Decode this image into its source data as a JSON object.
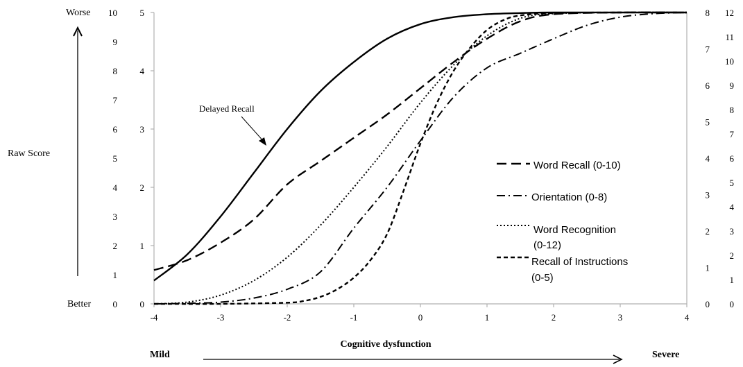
{
  "chart_data": {
    "type": "line",
    "xlabel": "Cognitive dysfunction",
    "xlim": [
      -4,
      4
    ],
    "x_ticks": [
      "-4",
      "-3",
      "-2",
      "-1",
      "0",
      "1",
      "2",
      "3",
      "4"
    ],
    "ylim": [
      0,
      5
    ],
    "y_ticks": [
      "0",
      "1",
      "2",
      "3",
      "4",
      "5"
    ],
    "raw_score_label": "Raw Score",
    "worse_label": "Worse",
    "better_label": "Better",
    "mild_label": "Mild",
    "severe_label": "Severe",
    "annotation": "Delayed Recall",
    "extra_scales": [
      {
        "name": "Delayed Recall scale (0-10)",
        "side": "left",
        "max": 10,
        "ticks": [
          "0",
          "1",
          "2",
          "3",
          "4",
          "5",
          "6",
          "7",
          "8",
          "9",
          "10"
        ]
      },
      {
        "name": "Orientation scale (0-8)",
        "side": "right",
        "max": 8,
        "ticks": [
          "0",
          "1",
          "2",
          "3",
          "4",
          "5",
          "6",
          "7",
          "8"
        ]
      },
      {
        "name": "Word Recognition scale (0-12)",
        "side": "right",
        "max": 12,
        "ticks": [
          "0",
          "1",
          "2",
          "3",
          "4",
          "5",
          "6",
          "7",
          "8",
          "9",
          "10",
          "11",
          "12"
        ]
      }
    ],
    "series": [
      {
        "name": "Delayed Recall",
        "style": "solid",
        "x": [
          -4,
          -3.5,
          -3,
          -2.5,
          -2,
          -1.5,
          -1,
          -0.5,
          0,
          0.5,
          1,
          1.5,
          2,
          3,
          4
        ],
        "y": [
          0.4,
          0.85,
          1.5,
          2.25,
          3.0,
          3.65,
          4.15,
          4.55,
          4.8,
          4.92,
          4.97,
          4.99,
          5.0,
          5.0,
          5.0
        ]
      },
      {
        "name": "Word Recall (0-10)",
        "style": "dashed",
        "x": [
          -4,
          -3.5,
          -3,
          -2.5,
          -2,
          -1.5,
          -1,
          -0.5,
          0,
          0.5,
          1,
          1.5,
          2,
          3,
          4
        ],
        "y": [
          0.58,
          0.75,
          1.05,
          1.45,
          2.05,
          2.45,
          2.85,
          3.25,
          3.7,
          4.15,
          4.55,
          4.85,
          4.97,
          5.0,
          5.0
        ]
      },
      {
        "name": "Orientation (0-8)",
        "style": "dashdot",
        "x": [
          -4,
          -3.5,
          -3,
          -2.5,
          -2,
          -1.5,
          -1,
          -0.5,
          0,
          0.5,
          1,
          1.5,
          2,
          2.5,
          3,
          3.5,
          4
        ],
        "y": [
          0.0,
          0.01,
          0.03,
          0.1,
          0.25,
          0.55,
          1.3,
          2.0,
          2.8,
          3.55,
          4.05,
          4.3,
          4.55,
          4.78,
          4.92,
          4.98,
          5.0
        ]
      },
      {
        "name": "Word Recognition (0-12)",
        "style": "dotted",
        "x": [
          -4,
          -3.5,
          -3,
          -2.5,
          -2,
          -1.5,
          -1,
          -0.5,
          0,
          0.5,
          1,
          1.5,
          2,
          3,
          4
        ],
        "y": [
          0.0,
          0.03,
          0.15,
          0.4,
          0.8,
          1.35,
          2.0,
          2.7,
          3.45,
          4.1,
          4.6,
          4.9,
          4.98,
          5.0,
          5.0
        ]
      },
      {
        "name": "Recall of Instructions (0-5)",
        "style": "shortdash",
        "x": [
          -4,
          -3,
          -2,
          -1.75,
          -1.5,
          -1.25,
          -1,
          -0.75,
          -0.5,
          -0.25,
          0,
          0.25,
          0.5,
          0.75,
          1,
          1.25,
          1.5,
          2,
          3,
          4
        ],
        "y": [
          0.0,
          0.0,
          0.02,
          0.05,
          0.12,
          0.25,
          0.45,
          0.75,
          1.2,
          1.95,
          2.75,
          3.45,
          4.0,
          4.4,
          4.7,
          4.87,
          4.95,
          4.99,
          5.0,
          5.0
        ]
      }
    ],
    "legend": {
      "placement": "right",
      "entries": [
        {
          "series": "Word Recall (0-10)",
          "lines": [
            "Word Recall (0-10)"
          ]
        },
        {
          "series": "Orientation (0-8)",
          "lines": [
            "Orientation (0-8)"
          ]
        },
        {
          "series": "Word Recognition (0-12)",
          "lines": [
            "Word Recognition",
            "(0-12)"
          ]
        },
        {
          "series": "Recall of Instructions (0-5)",
          "lines": [
            "Recall of Instructions",
            "(0-5)"
          ]
        }
      ]
    }
  }
}
